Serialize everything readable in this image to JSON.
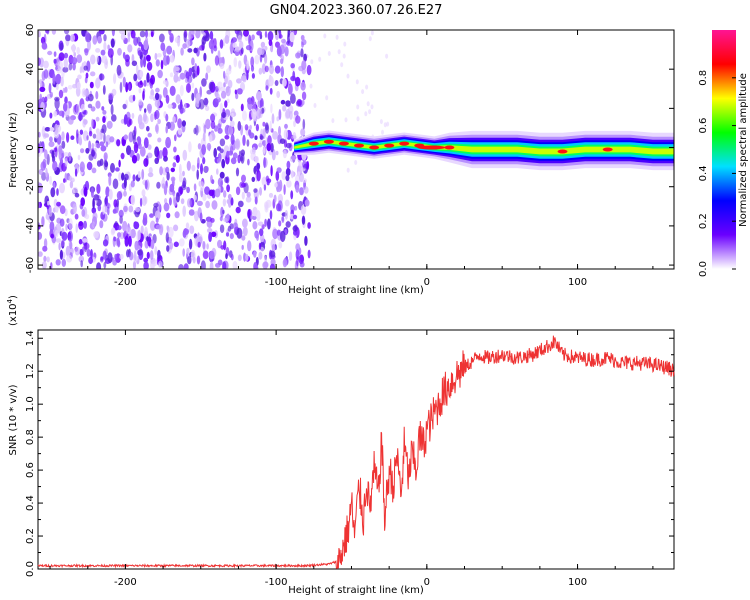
{
  "title": "GN04.2023.360.07.26.E27",
  "chart_data": [
    {
      "type": "heatmap",
      "xlabel": "Height of straight line (km)",
      "ylabel": "Frequency (Hz)",
      "xlim": [
        -258,
        164
      ],
      "ylim": [
        -62,
        60
      ],
      "xticks": [
        -200,
        -100,
        0,
        100
      ],
      "xtick_labels": [
        "-200",
        "-100",
        "0",
        "100"
      ],
      "yticks": [
        60,
        40,
        20,
        0,
        -20,
        -40,
        -60
      ],
      "ytick_labels": [
        "60",
        "40",
        "20",
        "0",
        "-20",
        "-40",
        "-60"
      ],
      "noise_region_x": [
        -258,
        -78
      ],
      "signal_track": {
        "x": [
          -88,
          -75,
          -65,
          -55,
          -45,
          -35,
          -25,
          -15,
          -5,
          5,
          15,
          30,
          45,
          60,
          75,
          90,
          105,
          120,
          135,
          150,
          164
        ],
        "frequency": [
          0,
          2,
          3,
          2,
          1,
          0,
          1,
          2,
          1,
          0,
          0,
          -1,
          -1,
          -1,
          -2,
          -2,
          -1,
          -1,
          -1,
          -2,
          -2
        ],
        "halfwidth": [
          2,
          3,
          3,
          3,
          3,
          3,
          3,
          3,
          3,
          3,
          4,
          5,
          5,
          5,
          5,
          5,
          5,
          5,
          5,
          5,
          5
        ],
        "peak_amplitude": [
          0.55,
          0.85,
          0.9,
          0.95,
          0.9,
          0.92,
          0.88,
          0.9,
          0.9,
          0.95,
          0.8,
          0.6,
          0.65,
          0.7,
          0.6,
          0.75,
          0.65,
          0.8,
          0.7,
          0.6,
          0.55
        ]
      },
      "colorbar": {
        "label": "Normalized spectral amplitude",
        "range": [
          0,
          1
        ],
        "ticks": [
          0.0,
          0.2,
          0.4,
          0.6,
          0.8
        ],
        "tick_labels": [
          "0.0",
          "0.2",
          "0.4",
          "0.6",
          "0.8"
        ],
        "colors": [
          "#ffffff",
          "#6a00ff",
          "#0000ff",
          "#00e0ff",
          "#00ff00",
          "#ffff00",
          "#ff0000",
          "#ff1493"
        ]
      }
    },
    {
      "type": "line",
      "xlabel": "Height of straight line (km)",
      "ylabel": "SNR (10 * v/v)",
      "scale_label": "(x10",
      "scale_exponent": "4",
      "scale_suffix": ")",
      "xlim": [
        -258,
        164
      ],
      "ylim": [
        0,
        1.45
      ],
      "xticks": [
        -200,
        -100,
        0,
        100
      ],
      "xtick_labels": [
        "-200",
        "-100",
        "0",
        "100"
      ],
      "yticks": [
        0.0,
        0.2,
        0.4,
        0.6,
        0.8,
        1.0,
        1.2,
        1.4
      ],
      "ytick_labels": [
        "0.0",
        "0.2",
        "0.4",
        "0.6",
        "0.8",
        "1.0",
        "1.2",
        "1.4"
      ],
      "color": "#ee3333",
      "series": [
        {
          "x": [
            -258,
            -240,
            -220,
            -200,
            -180,
            -160,
            -140,
            -120,
            -100,
            -80,
            -65,
            -58,
            -55,
            -52,
            -50,
            -48,
            -45,
            -42,
            -40,
            -38,
            -35,
            -32,
            -30,
            -28,
            -25,
            -22,
            -20,
            -17,
            -15,
            -12,
            -10,
            -7,
            -5,
            -2,
            0,
            3,
            5,
            8,
            10,
            15,
            20,
            25,
            30,
            35,
            40,
            50,
            60,
            70,
            80,
            85,
            90,
            100,
            110,
            120,
            130,
            140,
            150,
            160,
            164
          ],
          "y": [
            0.02,
            0.02,
            0.02,
            0.02,
            0.02,
            0.02,
            0.02,
            0.02,
            0.02,
            0.02,
            0.03,
            0.05,
            0.15,
            0.25,
            0.4,
            0.2,
            0.5,
            0.3,
            0.55,
            0.35,
            0.6,
            0.45,
            0.8,
            0.3,
            0.6,
            0.5,
            0.7,
            0.45,
            0.75,
            0.55,
            0.7,
            0.6,
            0.8,
            0.75,
            0.85,
            0.9,
            0.95,
            1.0,
            1.05,
            1.12,
            1.18,
            1.22,
            1.26,
            1.3,
            1.28,
            1.3,
            1.28,
            1.3,
            1.35,
            1.38,
            1.3,
            1.28,
            1.27,
            1.28,
            1.25,
            1.25,
            1.24,
            1.22,
            1.2
          ]
        }
      ]
    }
  ]
}
